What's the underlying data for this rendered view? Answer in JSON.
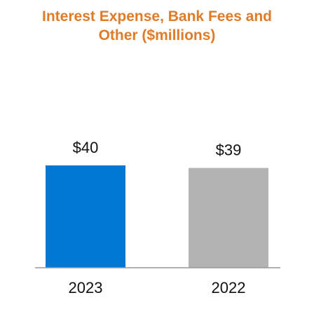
{
  "chart_data": {
    "type": "bar",
    "title": "Interest Expense, Bank Fees and Other ($millions)",
    "categories": [
      "2023",
      "2022"
    ],
    "values": [
      40,
      39
    ],
    "value_labels": [
      "$40",
      "$39"
    ],
    "colors": [
      "#0078d4",
      "#b3b3b3"
    ]
  }
}
